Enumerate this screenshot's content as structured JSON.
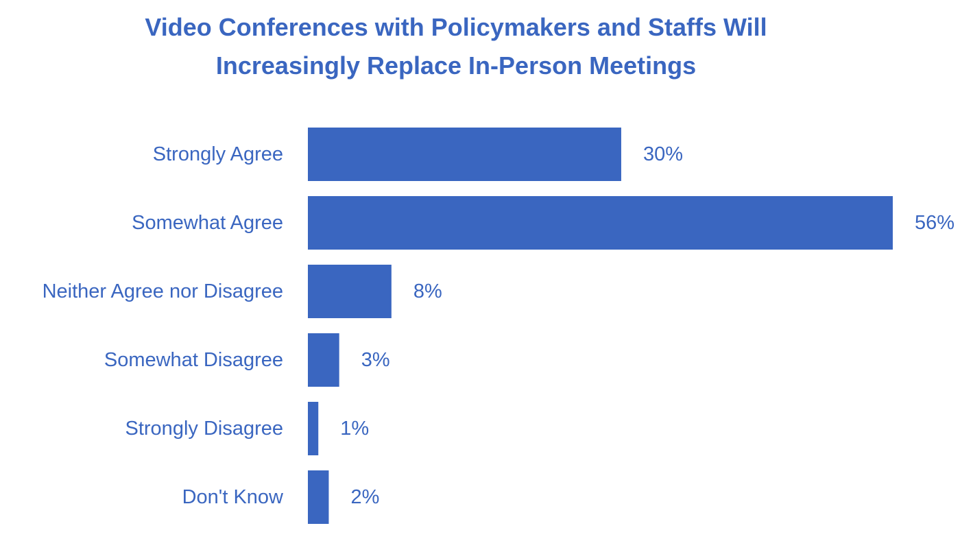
{
  "colors": {
    "bar": "#3a66c0",
    "text": "#3a66c0",
    "background": "#ffffff"
  },
  "chart_data": {
    "type": "bar",
    "orientation": "horizontal",
    "title_lines": [
      "Video Conferences with Policymakers and Staffs Will",
      "Increasingly Replace In-Person Meetings"
    ],
    "categories": [
      "Strongly Agree",
      "Somewhat Agree",
      "Neither Agree nor Disagree",
      "Somewhat Disagree",
      "Strongly Disagree",
      "Don't Know"
    ],
    "values": [
      30,
      56,
      8,
      3,
      1,
      2
    ],
    "data_labels": [
      "30%",
      "56%",
      "8%",
      "3%",
      "1%",
      "2%"
    ],
    "unit": "%",
    "xlim": [
      0,
      56
    ],
    "grid": false,
    "legend": "none"
  }
}
